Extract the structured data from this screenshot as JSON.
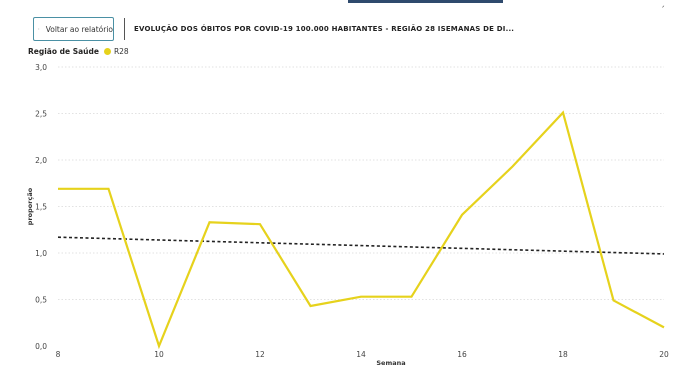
{
  "header": {
    "back_label": "Voltar ao relatório",
    "title": "EVOLUÇÃO DOS ÓBITOS POR COVID-19 100.000 HABITANTES - REGIÃO 28 ISEMANAS DE DI...",
    "corner_mark": "́"
  },
  "legend": {
    "title": "Região de Saúde",
    "series_name": "R28"
  },
  "colors": {
    "series": "#e6d21c",
    "trend": "#222222",
    "grid": "#d9d9d9",
    "accent": "#2f4a6d"
  },
  "chart_data": {
    "type": "line",
    "xlabel": "Semana",
    "ylabel": "proporção",
    "xlim": [
      8,
      20
    ],
    "ylim": [
      0,
      3
    ],
    "x_ticks": [
      8,
      10,
      12,
      14,
      16,
      18,
      20
    ],
    "y_ticks": [
      "0,0",
      "0,5",
      "1,0",
      "1,5",
      "2,0",
      "2,5",
      "3,0"
    ],
    "grid": true,
    "legend_position": "top-left",
    "series": [
      {
        "name": "R28",
        "x": [
          8,
          9,
          10,
          11,
          12,
          13,
          14,
          15,
          16,
          17,
          18,
          19,
          20
        ],
        "values": [
          1.69,
          1.69,
          0.0,
          1.33,
          1.31,
          0.43,
          0.53,
          0.53,
          1.41,
          1.93,
          2.51,
          0.49,
          0.2
        ]
      }
    ],
    "trendline": {
      "x": [
        8,
        20
      ],
      "values": [
        1.17,
        0.99
      ]
    }
  }
}
